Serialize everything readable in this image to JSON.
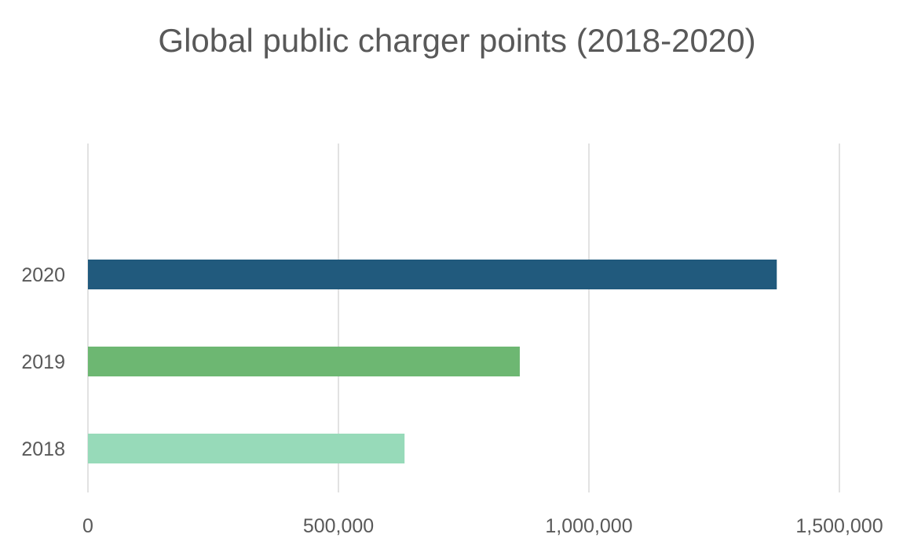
{
  "chart_data": {
    "type": "bar",
    "orientation": "horizontal",
    "title": "Global public charger points (2018-2020)",
    "xlabel": "",
    "ylabel": "",
    "categories": [
      "2018",
      "2019",
      "2020"
    ],
    "values": [
      632000,
      862000,
      1375000
    ],
    "bar_colors": [
      "#97dab9",
      "#6db772",
      "#215a7d"
    ],
    "xlim": [
      0,
      1500000
    ],
    "xticks": [
      0,
      500000,
      1000000,
      1500000
    ],
    "xtick_labels": [
      "0",
      "500,000",
      "1,000,000",
      "1,500,000"
    ],
    "grid": "vertical",
    "legend": "none"
  },
  "colors": {
    "gridline": "#d9d9d9",
    "text": "#595959"
  }
}
